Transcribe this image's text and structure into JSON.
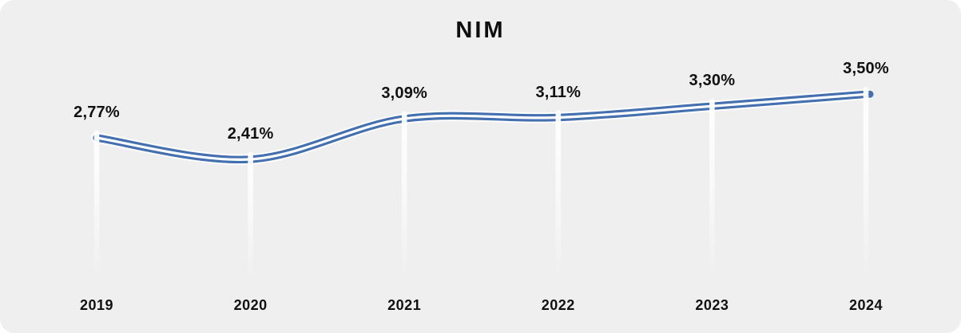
{
  "chart_data": {
    "type": "line",
    "title": "NIM",
    "categories": [
      "2019",
      "2020",
      "2021",
      "2022",
      "2023",
      "2024"
    ],
    "values": [
      2.77,
      2.41,
      3.09,
      3.11,
      3.3,
      3.5
    ],
    "value_labels": [
      "2,77%",
      "2,41%",
      "3,09%",
      "3,11%",
      "3,30%",
      "3,50%"
    ],
    "unit": "%",
    "decimal_separator": ",",
    "series_name": "NIM",
    "line_color": "#4470B0",
    "line_style": "double",
    "label_color": "#111111",
    "background_color": "#EFEFEF",
    "drop_line_color": "#FFFFFF",
    "grid": false,
    "legend": false,
    "axes_visible": false,
    "ylim": [
      2.2,
      3.7
    ]
  }
}
